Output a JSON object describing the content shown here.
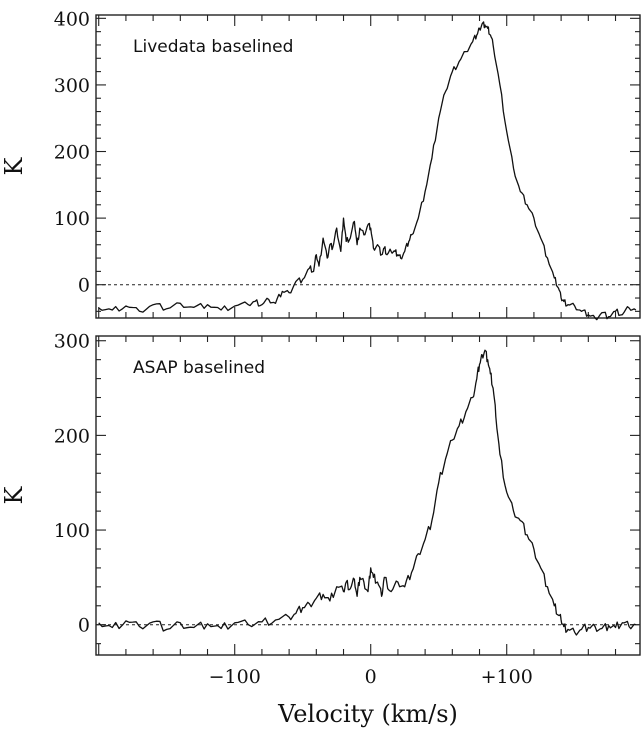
{
  "chart_data": [
    {
      "type": "line",
      "annotation": "Livedata baselined",
      "ylabel": "K",
      "xlim": [
        -202,
        198
      ],
      "ylim": [
        -50,
        405
      ],
      "yticks": [
        0,
        100,
        200,
        300,
        400
      ],
      "ytick_labels": [
        "0",
        "100",
        "200",
        "300",
        "400"
      ],
      "zero_line": "dashed",
      "series": [
        {
          "x": [
            -200,
            -190,
            -180,
            -170,
            -160,
            -150,
            -140,
            -130,
            -120,
            -110,
            -100,
            -90,
            -85,
            -80,
            -75,
            -70,
            -65,
            -60,
            -55,
            -50,
            -45,
            -42,
            -40,
            -38,
            -35,
            -32,
            -30,
            -28,
            -25,
            -22,
            -20,
            -18,
            -15,
            -12,
            -10,
            -8,
            -5,
            -2,
            0,
            2,
            5,
            8,
            10,
            12,
            15,
            18,
            20,
            22,
            25,
            28,
            30,
            35,
            40,
            45,
            50,
            55,
            60,
            65,
            70,
            75,
            78,
            80,
            82,
            84,
            86,
            88,
            90,
            95,
            100,
            105,
            110,
            115,
            120,
            125,
            130,
            135,
            138,
            140,
            142,
            145,
            150,
            155,
            160,
            165,
            170,
            175,
            180,
            185,
            190,
            195
          ],
          "y": [
            -35,
            -38,
            -32,
            -40,
            -30,
            -36,
            -28,
            -34,
            -30,
            -38,
            -32,
            -30,
            -25,
            -30,
            -22,
            -28,
            -10,
            -12,
            5,
            8,
            25,
            20,
            45,
            28,
            70,
            40,
            60,
            55,
            85,
            50,
            100,
            65,
            70,
            95,
            60,
            85,
            75,
            90,
            85,
            55,
            60,
            45,
            55,
            45,
            50,
            50,
            45,
            40,
            50,
            65,
            75,
            100,
            140,
            190,
            250,
            290,
            320,
            335,
            350,
            365,
            375,
            385,
            392,
            390,
            385,
            375,
            360,
            300,
            230,
            175,
            140,
            120,
            100,
            70,
            40,
            10,
            -5,
            -20,
            -25,
            -30,
            -32,
            -40,
            -45,
            -50,
            -42,
            -48,
            -40,
            -45,
            -35,
            -38
          ]
        }
      ]
    },
    {
      "type": "line",
      "annotation": "ASAP baselined",
      "ylabel": "K",
      "xlabel": "Velocity (km/s)",
      "xlim": [
        -202,
        198
      ],
      "ylim": [
        -32,
        305
      ],
      "yticks": [
        0,
        100,
        200,
        300
      ],
      "ytick_labels": [
        "0",
        "100",
        "200",
        "300"
      ],
      "xticks": [
        -100,
        0,
        100
      ],
      "xtick_labels": [
        "−100",
        "0",
        "+100"
      ],
      "zero_line": "dashed",
      "series": [
        {
          "x": [
            -200,
            -190,
            -180,
            -170,
            -160,
            -150,
            -140,
            -130,
            -120,
            -110,
            -100,
            -90,
            -80,
            -70,
            -60,
            -55,
            -50,
            -45,
            -40,
            -35,
            -30,
            -25,
            -20,
            -18,
            -15,
            -12,
            -10,
            -8,
            -5,
            -2,
            0,
            2,
            5,
            8,
            10,
            15,
            20,
            25,
            30,
            35,
            40,
            45,
            50,
            55,
            60,
            65,
            70,
            75,
            78,
            80,
            82,
            84,
            86,
            88,
            90,
            92,
            95,
            100,
            105,
            110,
            115,
            120,
            125,
            130,
            135,
            138,
            140,
            142,
            145,
            150,
            155,
            160,
            165,
            170,
            175,
            180,
            185,
            190,
            195
          ],
          "y": [
            2,
            -3,
            4,
            -2,
            3,
            -5,
            2,
            -3,
            1,
            -4,
            2,
            0,
            3,
            5,
            8,
            12,
            18,
            22,
            28,
            32,
            25,
            40,
            35,
            45,
            38,
            48,
            30,
            50,
            45,
            35,
            60,
            50,
            45,
            30,
            50,
            35,
            45,
            40,
            55,
            75,
            90,
            110,
            150,
            175,
            195,
            210,
            225,
            240,
            260,
            275,
            285,
            290,
            280,
            265,
            250,
            220,
            180,
            140,
            120,
            110,
            95,
            80,
            60,
            40,
            20,
            10,
            5,
            -2,
            -5,
            -8,
            -5,
            -3,
            -2,
            -4,
            -1,
            -3,
            2,
            -2,
            0
          ]
        }
      ]
    }
  ]
}
